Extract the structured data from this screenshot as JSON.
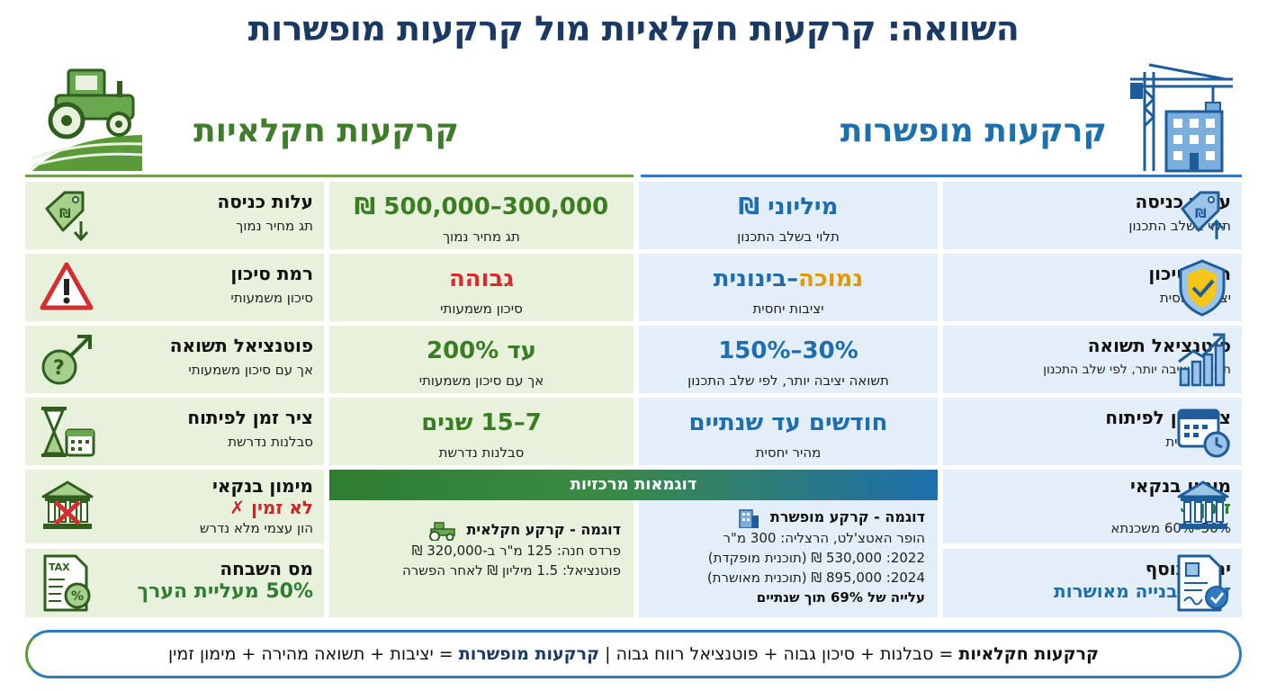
{
  "title": "השוואה: קרקעות חקלאיות מול קרקעות מופשרות",
  "agri": {
    "header": "קרקעות חקלאיות",
    "rows": [
      {
        "label": "עלות כניסה",
        "sub": "תג מחיר נמוך",
        "value": "300,000–500,000 ₪",
        "value_sub": "תג מחיר נמוך"
      },
      {
        "label": "רמת סיכון",
        "sub": "סיכון משמעותי",
        "value": "גבוהה",
        "value_sub": "סיכון משמעותי"
      },
      {
        "label": "פוטנציאל תשואה",
        "sub": "אך עם סיכון משמעותי",
        "value": "עד 200%",
        "value_sub": "אך עם סיכון משמעותי"
      },
      {
        "label": "ציר זמן לפיתוח",
        "sub": "סבלנות נדרשת",
        "value": "7–15 שנים",
        "value_sub": "סבלנות נדרשת"
      },
      {
        "label": "מימון בנקאי",
        "status": "לא זמין ✗",
        "sub": "הון עצמי מלא נדרש"
      },
      {
        "label": "מס השבחה",
        "highlight": "50% מעליית הערך"
      }
    ],
    "example": {
      "heading": "דוגמה - קרקע חקלאית",
      "lines": [
        "פרדס חנה: 125 מ\"ר ב-320,000 ₪",
        "פוטנציאל: 1.5 מיליון ₪ לאחר הפשרה"
      ]
    }
  },
  "dev": {
    "header": "קרקעות מופשרות",
    "rows": [
      {
        "label": "עלות כניסה",
        "sub": "תלוי בשלב התכנון",
        "value": "מיליוני ₪",
        "value_sub": "תלוי בשלב התכנון"
      },
      {
        "label": "רמת סיכון",
        "sub": "יציבות יחסית",
        "value_a": "נמוכה",
        "value_b": "–בינונית",
        "value_sub": "יציבות יחסית"
      },
      {
        "label": "פוטנציאל תשואה",
        "sub": "תשואה יציבה יותר, לפי שלב התכנון",
        "value": "30%–150%",
        "value_sub": "תשואה יציבה יותר, לפי שלב התכנון"
      },
      {
        "label": "ציר זמן לפיתוח",
        "sub": "מהיר יחסית",
        "value": "חודשים עד שנתיים",
        "value_sub": "מהיר יחסית"
      },
      {
        "label": "מימון בנקאי",
        "status": "זמין ✓",
        "sub": "50%–60% משכנתא"
      },
      {
        "label": "יתרון נוסף",
        "highlight": "זכויות בנייה מאושרות"
      }
    ],
    "example": {
      "heading": "דוגמה - קרקע מופשרת",
      "lines": [
        "הופר האטצ'לט, הרצליה: 300 מ\"ר",
        "2022: 530,000 ₪ (תוכנית מופקדת)",
        "2024: 895,000 ₪ (תוכנית מאושרת)"
      ],
      "bold": "עלייה של 69% תוך שנתיים"
    }
  },
  "examples_bar": "דוגמאות מרכזיות",
  "footer": {
    "agri_label": "קרקעות חקלאיות",
    "agri_text": " = סבלנות + סיכון גבוה + פוטנציאל רווח גבוה",
    "sep": " | ",
    "dev_label": "קרקעות מופשרות",
    "dev_text": " = יציבות + תשואה מהירה + מימון זמין"
  },
  "colors": {
    "green": "#3b7d22",
    "blue": "#1f6fb0",
    "red": "#d32f2f",
    "navy": "#1b3a63"
  }
}
